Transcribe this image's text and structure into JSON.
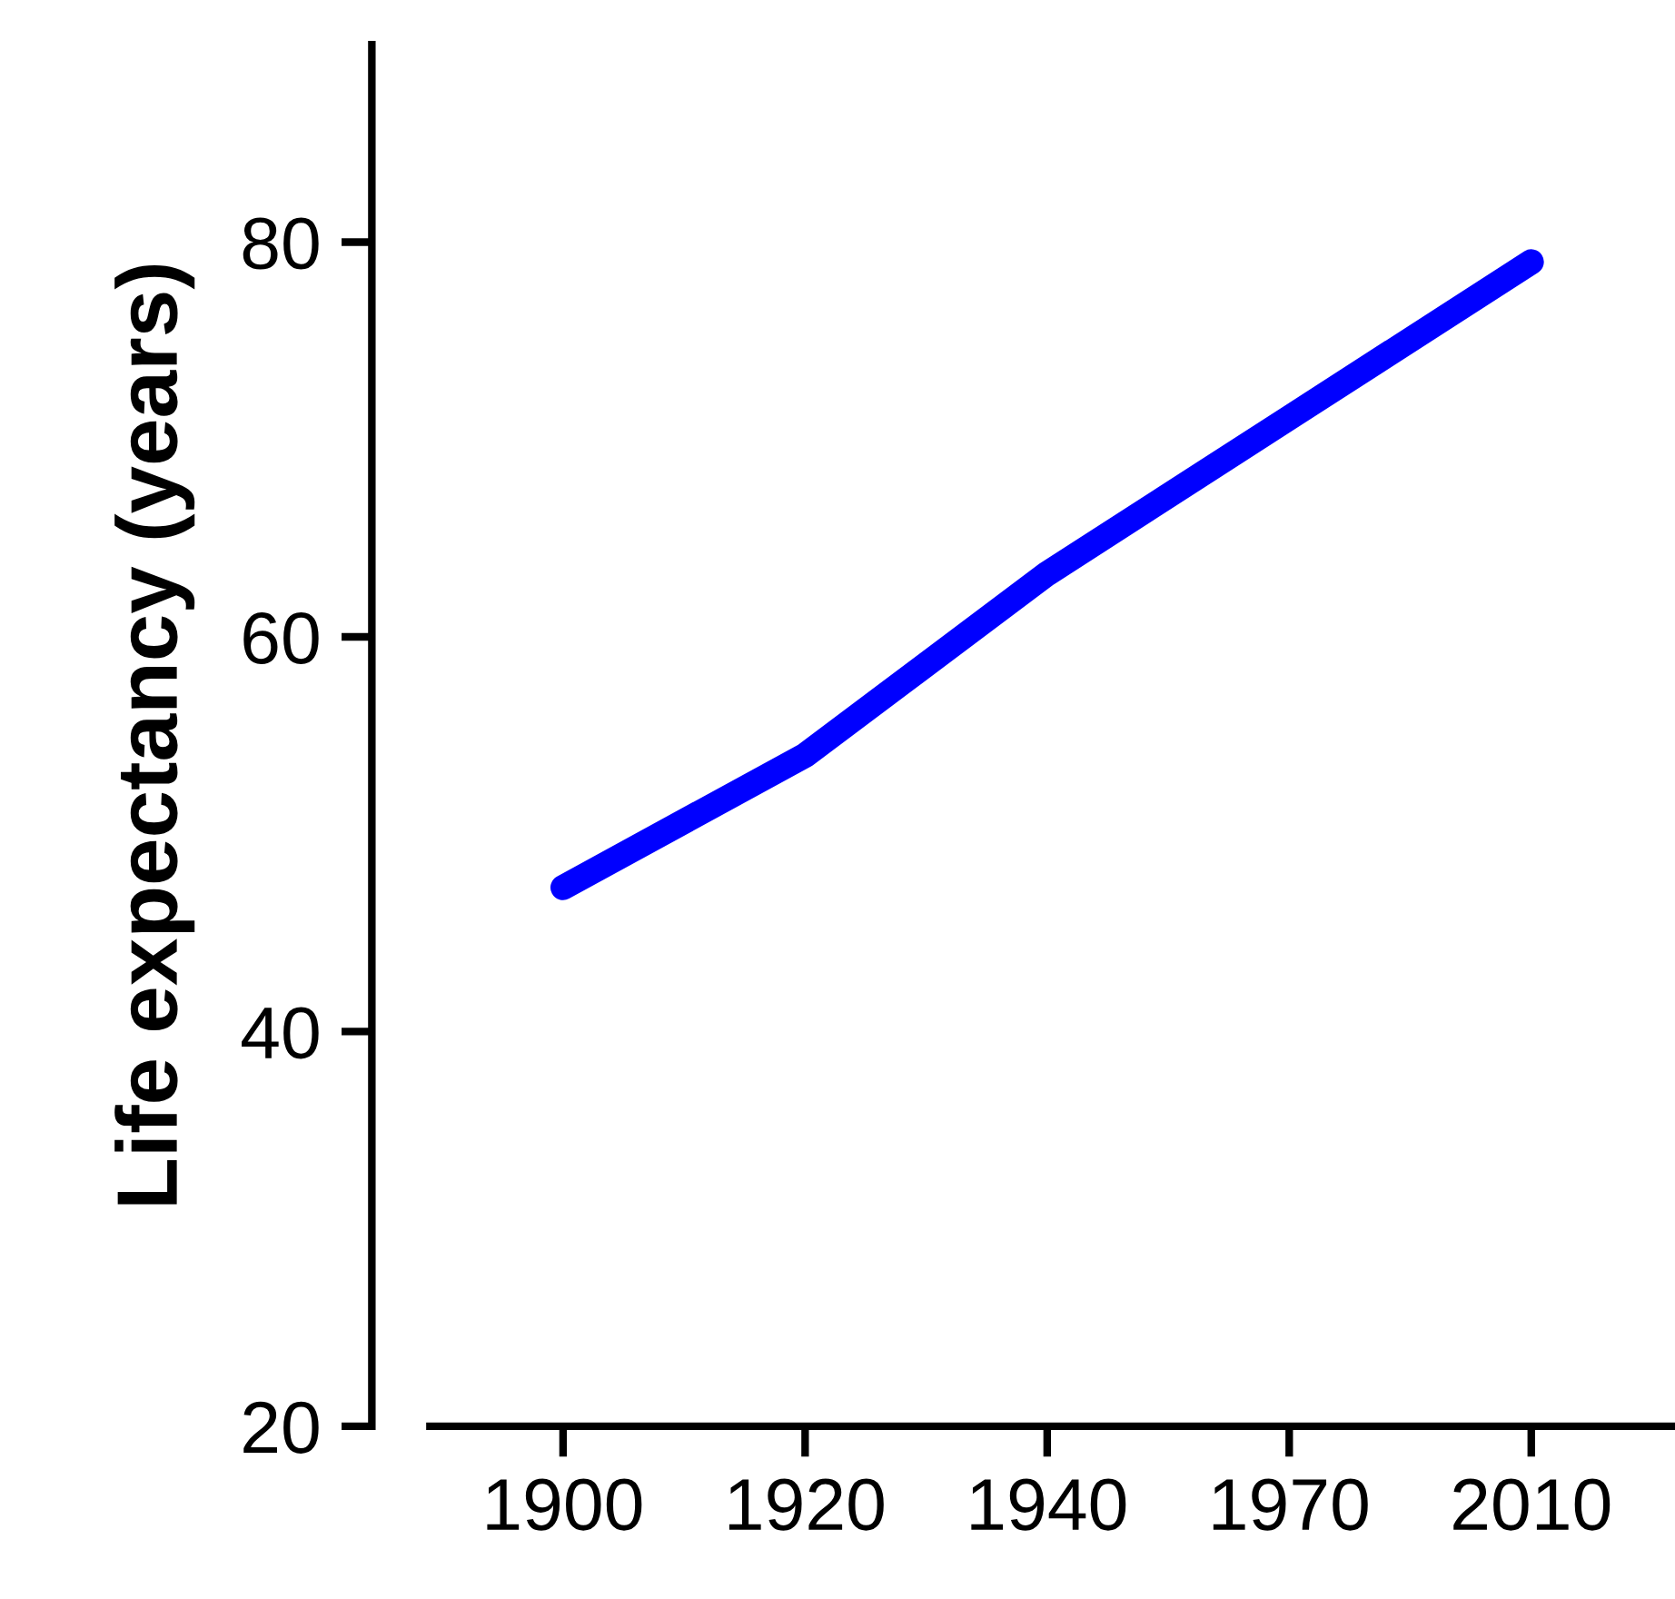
{
  "chart_data": {
    "type": "line",
    "ylabel": "Life expectancy (years)",
    "categories": [
      "1900",
      "1920",
      "1940",
      "1970",
      "2010"
    ],
    "series": [
      {
        "color": "#0000ff",
        "values": [
          47.3,
          54,
          63.2,
          71.1,
          79
        ]
      }
    ],
    "ylim": [
      20,
      90
    ],
    "yticks": [
      20,
      40,
      60,
      80
    ],
    "grid": false,
    "legend": false,
    "line_style": "solid"
  }
}
